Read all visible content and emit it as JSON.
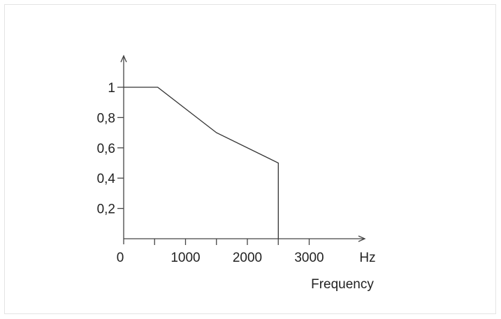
{
  "chart_data": {
    "type": "line",
    "title": "",
    "xlabel": "Frequency",
    "x_unit": "Hz",
    "ylabel": "",
    "xlim": [
      0,
      3900
    ],
    "ylim": [
      0,
      1.25
    ],
    "x_ticks": [
      {
        "value": 0,
        "label": "0"
      },
      {
        "value": 500,
        "label": ""
      },
      {
        "value": 1000,
        "label": "1000"
      },
      {
        "value": 1500,
        "label": ""
      },
      {
        "value": 2000,
        "label": "2000"
      },
      {
        "value": 2500,
        "label": ""
      },
      {
        "value": 3000,
        "label": "3000"
      }
    ],
    "y_ticks": [
      {
        "value": 0.2,
        "label": "0,2"
      },
      {
        "value": 0.4,
        "label": "0,4"
      },
      {
        "value": 0.6,
        "label": "0,6"
      },
      {
        "value": 0.8,
        "label": "0,8"
      },
      {
        "value": 1.0,
        "label": "1"
      }
    ],
    "series": [
      {
        "x": [
          0,
          550,
          1500,
          2500,
          2500
        ],
        "y": [
          1.0,
          1.0,
          0.7,
          0.5,
          0
        ]
      }
    ],
    "grid": false,
    "legend": "none"
  }
}
